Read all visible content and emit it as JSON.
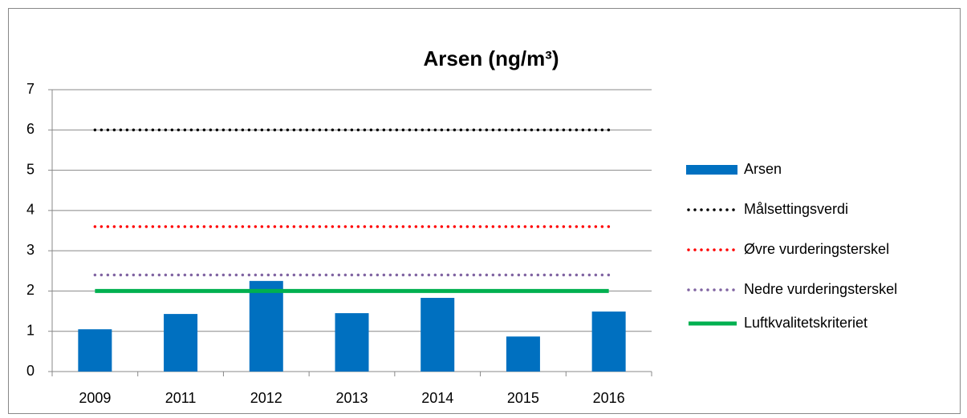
{
  "chart_data": {
    "type": "bar",
    "title": "Arsen (ng/m³)",
    "categories": [
      "2009",
      "2011",
      "2012",
      "2013",
      "2014",
      "2015",
      "2016"
    ],
    "series": [
      {
        "name": "Arsen",
        "type": "bar",
        "color": "#0070c0",
        "values": [
          1.05,
          1.43,
          2.25,
          1.45,
          1.83,
          0.87,
          1.49
        ]
      },
      {
        "name": "Målsettingsverdi",
        "type": "line",
        "style": "dotted",
        "color": "#000000",
        "values": [
          6,
          6,
          6,
          6,
          6,
          6,
          6
        ]
      },
      {
        "name": "Øvre vurderingsterskel",
        "type": "line",
        "style": "dotted",
        "color": "#ff0000",
        "values": [
          3.6,
          3.6,
          3.6,
          3.6,
          3.6,
          3.6,
          3.6
        ]
      },
      {
        "name": "Nedre vurderingsterskel",
        "type": "line",
        "style": "dotted",
        "color": "#8064a2",
        "values": [
          2.4,
          2.4,
          2.4,
          2.4,
          2.4,
          2.4,
          2.4
        ]
      },
      {
        "name": "Luftkvalitetskriteriet",
        "type": "line",
        "style": "solid",
        "color": "#00b050",
        "values": [
          2,
          2,
          2,
          2,
          2,
          2,
          2
        ]
      }
    ],
    "ylim": [
      0,
      7
    ],
    "yticks": [
      0,
      1,
      2,
      3,
      4,
      5,
      6,
      7
    ],
    "grid": true,
    "legend": "right"
  }
}
